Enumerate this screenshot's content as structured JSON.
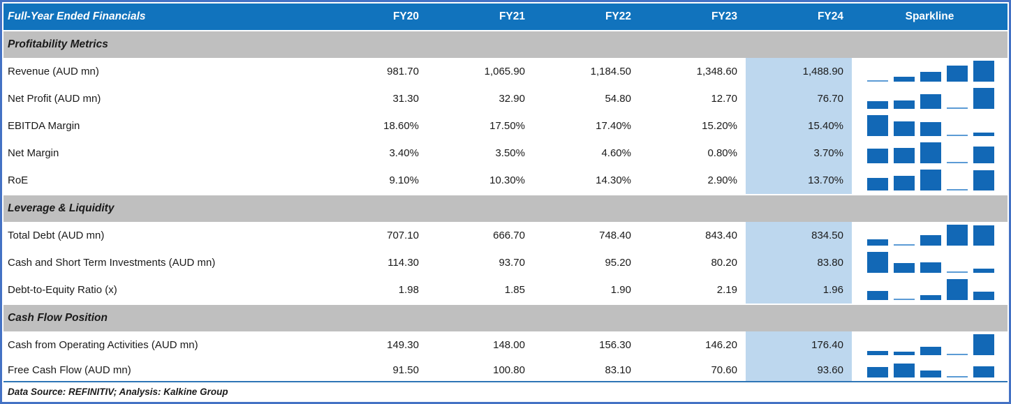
{
  "chart_data": {
    "type": "table",
    "title": "Full-Year Ended Financials",
    "columns": [
      "FY20",
      "FY21",
      "FY22",
      "FY23",
      "FY24"
    ],
    "sparkline_column": "Sparkline",
    "sparkline_type": "bar",
    "highlight_column": "FY24",
    "sections": [
      {
        "label": "Profitability Metrics",
        "rows": [
          {
            "label": "Revenue (AUD mn)",
            "display": [
              "981.70",
              "1,065.90",
              "1,184.50",
              "1,348.60",
              "1,488.90"
            ],
            "values": [
              981.7,
              1065.9,
              1184.5,
              1348.6,
              1488.9
            ]
          },
          {
            "label": "Net Profit (AUD mn)",
            "display": [
              "31.30",
              "32.90",
              "54.80",
              "12.70",
              "76.70"
            ],
            "values": [
              31.3,
              32.9,
              54.8,
              12.7,
              76.7
            ]
          },
          {
            "label": "EBITDA Margin",
            "display": [
              "18.60%",
              "17.50%",
              "17.40%",
              "15.20%",
              "15.40%"
            ],
            "values": [
              18.6,
              17.5,
              17.4,
              15.2,
              15.4
            ]
          },
          {
            "label": "Net Margin",
            "display": [
              "3.40%",
              "3.50%",
              "4.60%",
              "0.80%",
              "3.70%"
            ],
            "values": [
              3.4,
              3.5,
              4.6,
              0.8,
              3.7
            ]
          },
          {
            "label": "RoE",
            "display": [
              "9.10%",
              "10.30%",
              "14.30%",
              "2.90%",
              "13.70%"
            ],
            "values": [
              9.1,
              10.3,
              14.3,
              2.9,
              13.7
            ]
          }
        ]
      },
      {
        "label": "Leverage & Liquidity",
        "rows": [
          {
            "label": "Total Debt (AUD mn)",
            "display": [
              "707.10",
              "666.70",
              "748.40",
              "843.40",
              "834.50"
            ],
            "values": [
              707.1,
              666.7,
              748.4,
              843.4,
              834.5
            ]
          },
          {
            "label": "Cash and Short Term Investments (AUD mn)",
            "display": [
              "114.30",
              "93.70",
              "95.20",
              "80.20",
              "83.80"
            ],
            "values": [
              114.3,
              93.7,
              95.2,
              80.2,
              83.8
            ]
          },
          {
            "label": "Debt-to-Equity Ratio (x)",
            "display": [
              "1.98",
              "1.85",
              "1.90",
              "2.19",
              "1.96"
            ],
            "values": [
              1.98,
              1.85,
              1.9,
              2.19,
              1.96
            ]
          }
        ]
      },
      {
        "label": "Cash Flow Position",
        "rows": [
          {
            "label": "Cash from Operating Activities (AUD mn)",
            "display": [
              "149.30",
              "148.00",
              "156.30",
              "146.20",
              "176.40"
            ],
            "values": [
              149.3,
              148.0,
              156.3,
              146.2,
              176.4
            ]
          },
          {
            "label": "Free Cash Flow (AUD mn)",
            "display": [
              "91.50",
              "100.80",
              "83.10",
              "70.60",
              "93.60"
            ],
            "values": [
              91.5,
              100.8,
              83.1,
              70.6,
              93.6
            ],
            "compact": true
          }
        ]
      }
    ]
  },
  "footer": "Data Source: REFINITIV; Analysis: Kalkine Group",
  "colors": {
    "header_blue": "#1173BD",
    "bar_blue": "#1268B6",
    "bar_blue_min": "#5B9BD5",
    "highlight_blue": "#BDD7EE",
    "section_gray": "#BFBFBF",
    "border_blue": "#4472C4",
    "divider_blue": "#2E75B6",
    "text": "#1A1A1A"
  }
}
